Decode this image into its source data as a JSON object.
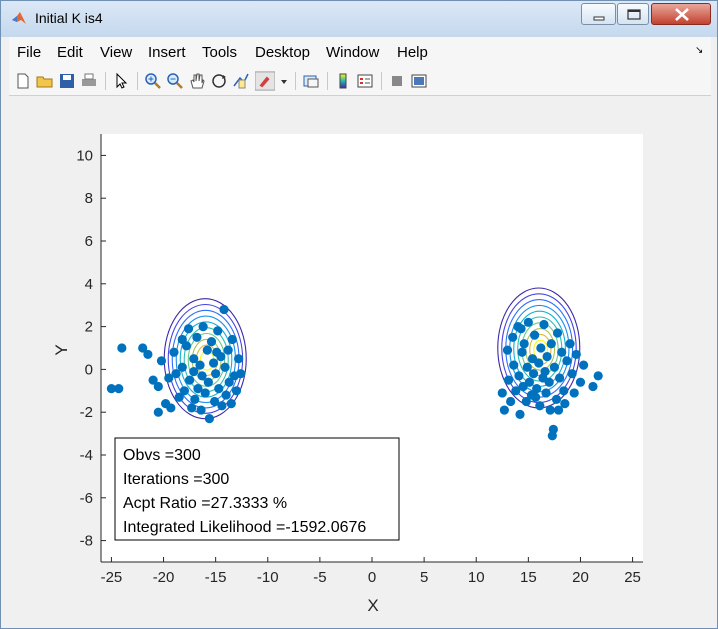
{
  "window": {
    "title": "Initial K is4"
  },
  "menu": [
    "File",
    "Edit",
    "View",
    "Insert",
    "Tools",
    "Desktop",
    "Window",
    "Help"
  ],
  "toolbar": {
    "icons": [
      "new-figure-icon",
      "open-icon",
      "save-icon",
      "print-icon",
      "pointer-icon",
      "zoom-in-icon",
      "zoom-out-icon",
      "pan-icon",
      "rotate-icon",
      "data-cursor-icon",
      "brush-icon",
      "brush-dropdown-icon",
      "link-plot-icon",
      "colorbar-icon",
      "legend-icon",
      "hide-plot-tools-icon",
      "show-plot-tools-icon"
    ]
  },
  "chart_data": {
    "type": "scatter",
    "xlabel": "X",
    "ylabel": "Y",
    "xlim": [
      -26,
      26
    ],
    "ylim": [
      -9,
      11
    ],
    "xticks": [
      -25,
      -20,
      -15,
      -10,
      -5,
      0,
      5,
      10,
      15,
      20,
      25
    ],
    "yticks": [
      -8,
      -6,
      -4,
      -2,
      0,
      2,
      4,
      6,
      8,
      10
    ],
    "grid": false,
    "colors": {
      "points": "#0072bd",
      "contour_outer": "#3d26a8",
      "contour_inner": "#f9fb0e"
    },
    "clusters": [
      {
        "center": [
          -16,
          0.5
        ],
        "points": [
          [
            -25,
            -0.9
          ],
          [
            -24.3,
            -0.9
          ],
          [
            -24,
            1
          ],
          [
            -22,
            1
          ],
          [
            -21.5,
            0.7
          ],
          [
            -21,
            -0.5
          ],
          [
            -20.5,
            -0.8
          ],
          [
            -20.2,
            0.4
          ],
          [
            -19.8,
            -1.6
          ],
          [
            -19.3,
            -1.8
          ],
          [
            -19,
            0.8
          ],
          [
            -18.8,
            -0.2
          ],
          [
            -18.5,
            -1.3
          ],
          [
            -18.2,
            0.1
          ],
          [
            -18,
            -1
          ],
          [
            -17.8,
            1.1
          ],
          [
            -17.5,
            -0.5
          ],
          [
            -17.3,
            -1.8
          ],
          [
            -17.1,
            0.5
          ],
          [
            -17,
            -1.4
          ],
          [
            -16.8,
            1.5
          ],
          [
            -16.7,
            -0.9
          ],
          [
            -16.5,
            0.2
          ],
          [
            -16.3,
            -0.3
          ],
          [
            -16.2,
            2
          ],
          [
            -16,
            -1.1
          ],
          [
            -15.8,
            0.9
          ],
          [
            -15.7,
            -0.6
          ],
          [
            -15.6,
            -2.3
          ],
          [
            -15.4,
            1.3
          ],
          [
            -15.2,
            0.3
          ],
          [
            -15.1,
            -1.5
          ],
          [
            -15,
            -0.2
          ],
          [
            -14.8,
            1.8
          ],
          [
            -14.7,
            -0.9
          ],
          [
            -14.5,
            0.6
          ],
          [
            -14.4,
            -1.7
          ],
          [
            -14.2,
            2.8
          ],
          [
            -14.1,
            0.1
          ],
          [
            -14,
            -1.2
          ],
          [
            -13.8,
            0.9
          ],
          [
            -13.7,
            -0.6
          ],
          [
            -13.5,
            -1.6
          ],
          [
            -13.4,
            1.4
          ],
          [
            -13.2,
            -0.3
          ],
          [
            -13,
            -1
          ],
          [
            -12.8,
            0.5
          ],
          [
            -12.6,
            -0.2
          ],
          [
            -17.6,
            1.9
          ],
          [
            -18.2,
            1.4
          ],
          [
            -19.5,
            -0.4
          ],
          [
            -20.5,
            -2
          ],
          [
            -17.1,
            -0.1
          ],
          [
            -16.4,
            -1.9
          ],
          [
            -14.9,
            0.8
          ]
        ]
      },
      {
        "center": [
          16,
          1
        ],
        "points": [
          [
            12.5,
            -1.1
          ],
          [
            12.7,
            -1.9
          ],
          [
            13,
            0.9
          ],
          [
            13.1,
            -0.5
          ],
          [
            13.3,
            -1.5
          ],
          [
            13.5,
            1.5
          ],
          [
            13.6,
            0.2
          ],
          [
            13.8,
            -1
          ],
          [
            14,
            2
          ],
          [
            14.1,
            -0.3
          ],
          [
            14.2,
            -2.1
          ],
          [
            14.4,
            0.8
          ],
          [
            14.5,
            -0.8
          ],
          [
            14.6,
            1.2
          ],
          [
            14.8,
            -1.5
          ],
          [
            14.9,
            0.1
          ],
          [
            15,
            2.2
          ],
          [
            15.1,
            -0.6
          ],
          [
            15.3,
            -1.2
          ],
          [
            15.4,
            0.5
          ],
          [
            15.5,
            -0.2
          ],
          [
            15.6,
            1.6
          ],
          [
            15.8,
            -0.9
          ],
          [
            16,
            0.3
          ],
          [
            16.1,
            -1.7
          ],
          [
            16.2,
            1
          ],
          [
            16.4,
            -0.4
          ],
          [
            16.5,
            2.1
          ],
          [
            16.7,
            -1.1
          ],
          [
            16.8,
            0.6
          ],
          [
            17,
            -0.6
          ],
          [
            17.1,
            -1.9
          ],
          [
            17.2,
            1.2
          ],
          [
            17.3,
            -3.1
          ],
          [
            17.4,
            -2.8
          ],
          [
            17.5,
            0.1
          ],
          [
            17.7,
            -1.4
          ],
          [
            17.8,
            1.7
          ],
          [
            18,
            -0.4
          ],
          [
            18.2,
            0.8
          ],
          [
            18.4,
            -1
          ],
          [
            18.5,
            -1.6
          ],
          [
            18.7,
            0.4
          ],
          [
            19,
            1.2
          ],
          [
            19.2,
            -0.2
          ],
          [
            19.4,
            -1.1
          ],
          [
            19.6,
            0.7
          ],
          [
            20,
            -0.6
          ],
          [
            20.3,
            0.2
          ],
          [
            21.2,
            -0.8
          ],
          [
            21.7,
            -0.3
          ],
          [
            14.3,
            1.9
          ],
          [
            15.7,
            -1.3
          ],
          [
            16.6,
            -0.1
          ],
          [
            17.9,
            -1.9
          ]
        ]
      }
    ],
    "annotation": [
      "Obvs =300",
      "Iterations =300",
      "Acpt Ratio =27.3333 %",
      "Integrated Likelihood =-1592.0676"
    ]
  }
}
